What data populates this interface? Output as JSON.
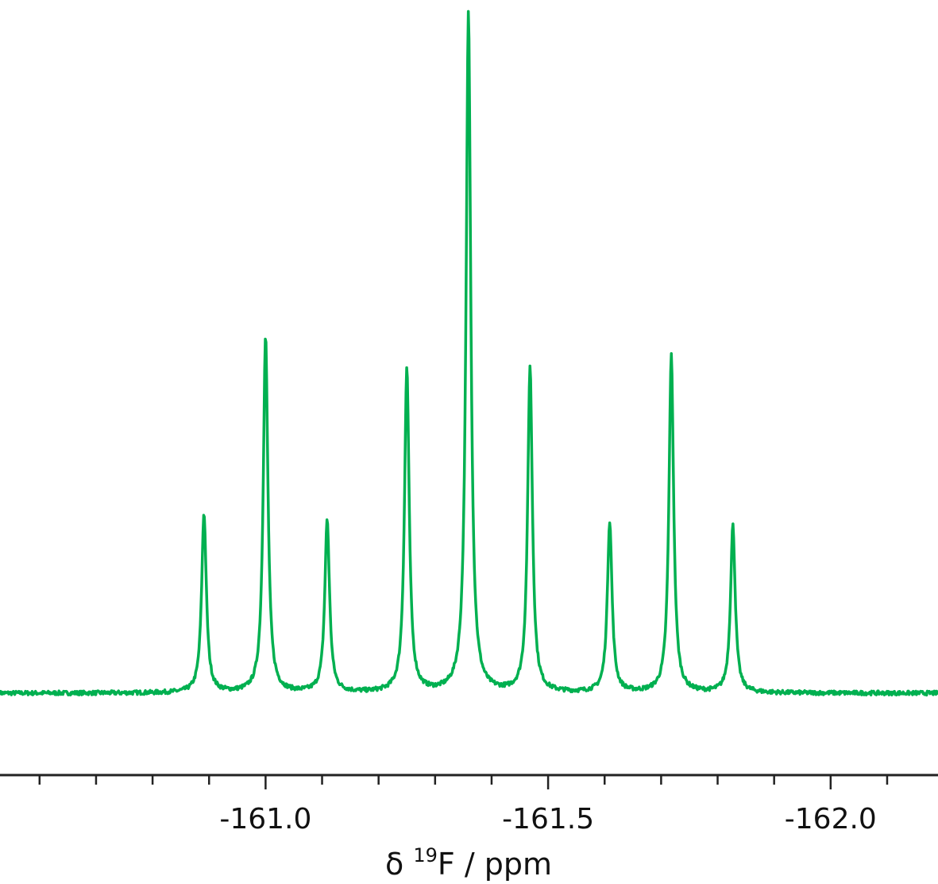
{
  "chart_data": {
    "type": "line",
    "xlabel_prefix": "δ ",
    "xlabel_sup": "19",
    "xlabel_suffix": "F / ppm",
    "xlim": [
      -160.53,
      -162.19
    ],
    "x_reversed": true,
    "xticks_major": [
      -161.0,
      -161.5,
      -162.0
    ],
    "xtick_labels": [
      "-161.0",
      "-161.5",
      "-162.0"
    ],
    "xticks_minor_step": 0.1,
    "yaxis_visible": false,
    "grid": false,
    "series": [
      {
        "color": "#00b050",
        "baseline": 0.0,
        "peaks": [
          {
            "x": -160.891,
            "height": 0.264,
            "width": 0.005
          },
          {
            "x": -161.0,
            "height": 0.524,
            "width": 0.005
          },
          {
            "x": -161.109,
            "height": 0.254,
            "width": 0.005
          },
          {
            "x": -161.25,
            "height": 0.477,
            "width": 0.005
          },
          {
            "x": -161.359,
            "height": 1.0,
            "width": 0.005
          },
          {
            "x": -161.468,
            "height": 0.479,
            "width": 0.005
          },
          {
            "x": -161.609,
            "height": 0.251,
            "width": 0.005
          },
          {
            "x": -161.718,
            "height": 0.496,
            "width": 0.005
          },
          {
            "x": -161.827,
            "height": 0.246,
            "width": 0.005
          }
        ]
      }
    ]
  }
}
